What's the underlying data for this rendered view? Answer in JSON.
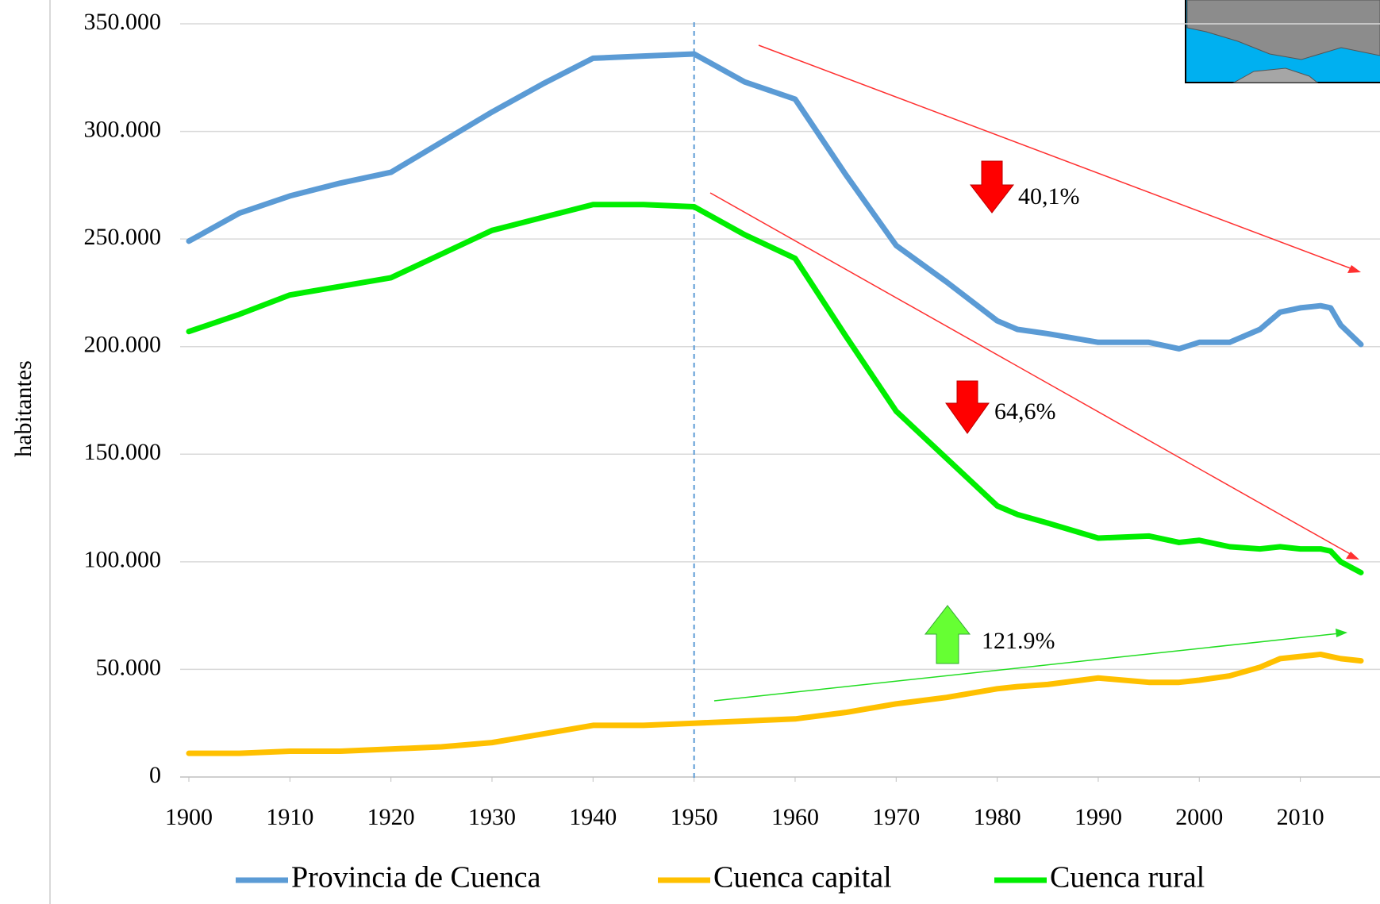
{
  "chart_data": {
    "type": "line",
    "y_label": "habitantes",
    "x": [
      1900,
      1905,
      1910,
      1915,
      1920,
      1925,
      1930,
      1935,
      1940,
      1945,
      1950,
      1955,
      1960,
      1965,
      1970,
      1975,
      1980,
      1982,
      1985,
      1990,
      1995,
      1998,
      2000,
      2003,
      2006,
      2008,
      2010,
      2012,
      2013,
      2014,
      2016
    ],
    "series": [
      {
        "name": "Provincia de Cuenca",
        "color": "#5b9bd5",
        "values": [
          249000,
          262000,
          270000,
          276000,
          281000,
          295000,
          309000,
          322000,
          334000,
          335000,
          336000,
          323000,
          315000,
          280000,
          247000,
          230000,
          212000,
          208000,
          206000,
          202000,
          202000,
          199000,
          202000,
          202000,
          208000,
          216000,
          218000,
          219000,
          218000,
          210000,
          201000
        ]
      },
      {
        "name": "Cuenca capital",
        "color": "#ffc000",
        "values": [
          11000,
          11000,
          12000,
          12000,
          13000,
          14000,
          16000,
          20000,
          24000,
          24000,
          25000,
          26000,
          27000,
          30000,
          34000,
          37000,
          41000,
          42000,
          43000,
          46000,
          44000,
          44000,
          45000,
          47000,
          51000,
          55000,
          56000,
          57000,
          56000,
          55000,
          54000
        ]
      },
      {
        "name": "Cuenca rural",
        "color": "#00ee00",
        "values": [
          207000,
          215000,
          224000,
          228000,
          232000,
          243000,
          254000,
          260000,
          266000,
          266000,
          265000,
          252000,
          241000,
          205000,
          170000,
          148000,
          126000,
          122000,
          118000,
          111000,
          112000,
          109000,
          110000,
          107000,
          106000,
          107000,
          106000,
          106000,
          105000,
          100000,
          95000
        ]
      }
    ],
    "xlim": [
      1900,
      2016
    ],
    "xticks": [
      1900,
      1910,
      1920,
      1930,
      1940,
      1950,
      1960,
      1970,
      1980,
      1990,
      2000,
      2010
    ],
    "ylim": [
      0,
      350000
    ],
    "yticks": [
      0,
      {
        "value": 50000,
        "label": "50.000"
      },
      {
        "value": 100000,
        "label": "100.000"
      },
      {
        "value": 150000,
        "label": "150.000"
      },
      {
        "value": 200000,
        "label": "200.000"
      },
      {
        "value": 250000,
        "label": "250.000"
      },
      {
        "value": 300000,
        "label": "300.000"
      },
      {
        "value": 350000,
        "label": "350.000"
      }
    ],
    "grid": true,
    "reference_line_x": 1950,
    "annotations": [
      "40,1%",
      "64,6%",
      "121.9%"
    ],
    "legend": "bottom"
  }
}
